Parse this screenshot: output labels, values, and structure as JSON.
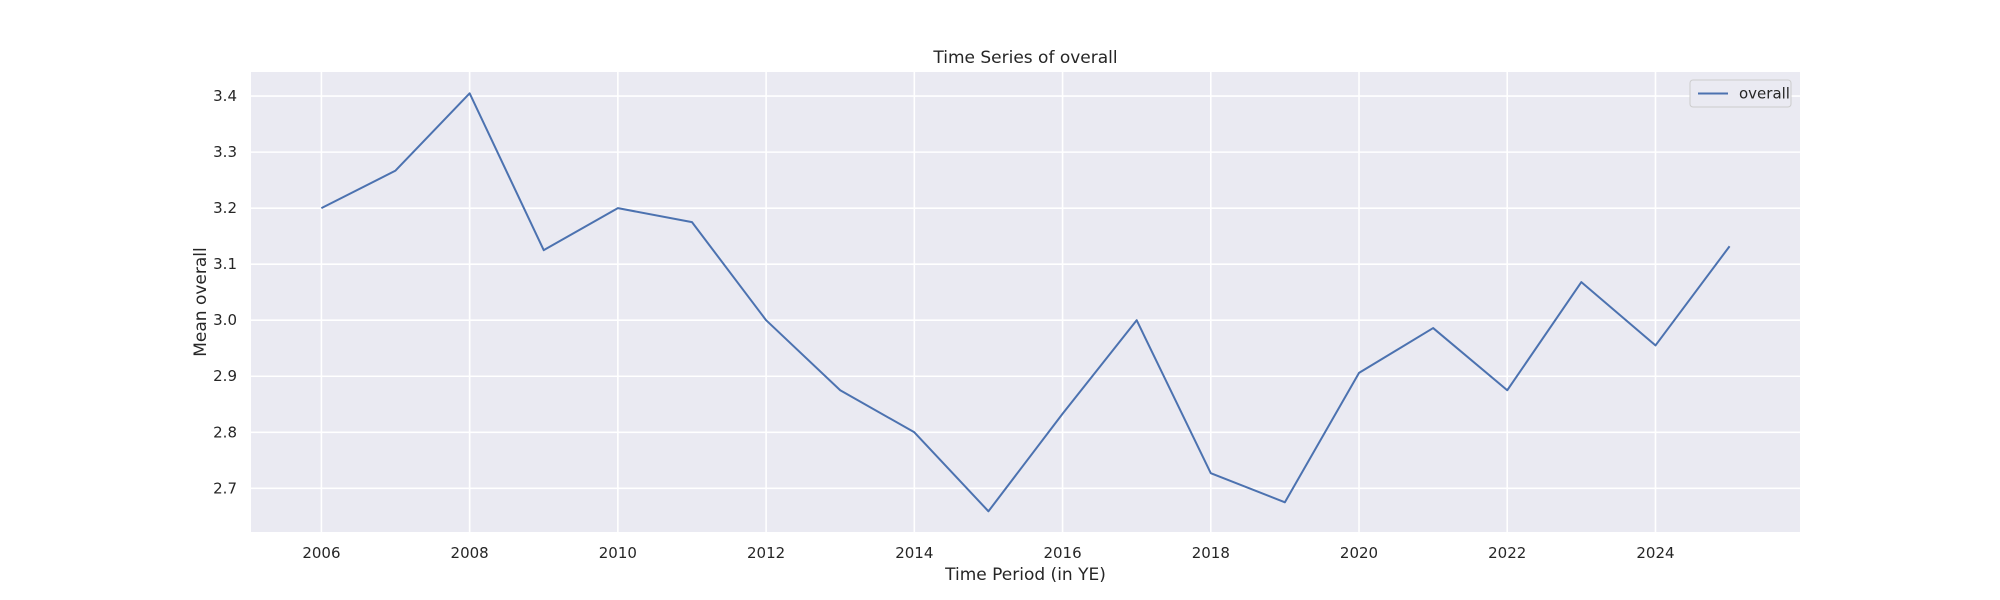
{
  "chart_data": {
    "type": "line",
    "title": "Time Series of overall",
    "xlabel": "Time Period (in YE)",
    "ylabel": "Mean overall",
    "xlim": [
      2005.05,
      2025.95
    ],
    "ylim": [
      2.622,
      3.443
    ],
    "xticks": [
      2006,
      2008,
      2010,
      2012,
      2014,
      2016,
      2018,
      2020,
      2022,
      2024
    ],
    "xtick_labels": [
      "2006",
      "2008",
      "2010",
      "2012",
      "2014",
      "2016",
      "2018",
      "2020",
      "2022",
      "2024"
    ],
    "yticks": [
      2.7,
      2.8,
      2.9,
      3.0,
      3.1,
      3.2,
      3.3,
      3.4
    ],
    "ytick_labels": [
      "2.7",
      "2.8",
      "2.9",
      "3.0",
      "3.1",
      "3.2",
      "3.3",
      "3.4"
    ],
    "grid": true,
    "legend_position": "top-right",
    "x": [
      2006,
      2007,
      2008,
      2009,
      2010,
      2011,
      2012,
      2013,
      2014,
      2015,
      2016,
      2017,
      2018,
      2019,
      2020,
      2021,
      2022,
      2023,
      2024,
      2025
    ],
    "series": [
      {
        "name": "overall",
        "color": "#4c72b0",
        "values": [
          3.2,
          3.267,
          3.405,
          3.125,
          3.2,
          3.175,
          3.0,
          2.875,
          2.8,
          2.659,
          2.833,
          3.0,
          2.727,
          2.675,
          2.906,
          2.986,
          2.875,
          3.068,
          2.955,
          3.132
        ]
      }
    ],
    "colors": {
      "plot_background": "#eaeaf2",
      "grid": "#ffffff",
      "text": "#262626"
    }
  }
}
